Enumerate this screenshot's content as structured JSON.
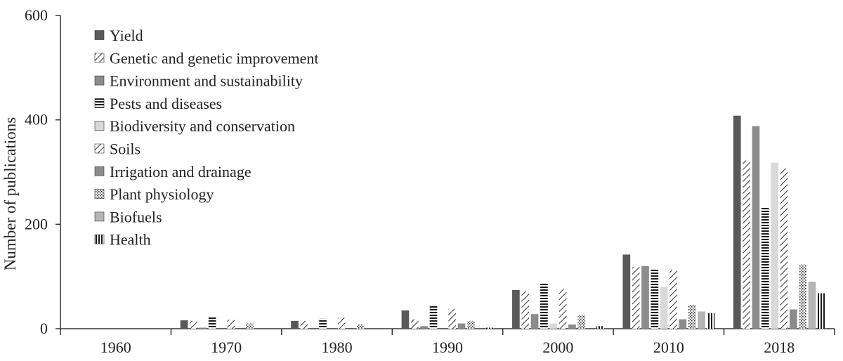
{
  "chart_data": {
    "type": "bar",
    "title": "",
    "xlabel": "",
    "ylabel": "Number of publications",
    "ylim": [
      0,
      600
    ],
    "yticks": [
      "0",
      "200",
      "400",
      "600"
    ],
    "grid": false,
    "legend_position": "top-left",
    "categories": [
      "1960",
      "1970",
      "1980",
      "1990",
      "2000",
      "2010",
      "2018"
    ],
    "series": [
      {
        "name": "Yield",
        "pattern": "solid-dark",
        "values": [
          0,
          16,
          15,
          35,
          74,
          142,
          408
        ]
      },
      {
        "name": "Genetic and genetic improvement",
        "pattern": "diagonal-hatch",
        "values": [
          0,
          15,
          15,
          18,
          72,
          118,
          322
        ]
      },
      {
        "name": "Environment and sustainability",
        "pattern": "solid-gray",
        "values": [
          0,
          2,
          0,
          5,
          28,
          120,
          388
        ]
      },
      {
        "name": "Pests and diseases",
        "pattern": "horizontal-lines",
        "values": [
          0,
          23,
          19,
          44,
          87,
          113,
          232
        ]
      },
      {
        "name": "Biodiversity and conservation",
        "pattern": "solid-light",
        "values": [
          0,
          0,
          0,
          0,
          10,
          80,
          318
        ]
      },
      {
        "name": "Soils",
        "pattern": "diagonal-hatch",
        "values": [
          0,
          17,
          21,
          38,
          76,
          112,
          307
        ]
      },
      {
        "name": "Irrigation and drainage",
        "pattern": "solid-gray",
        "values": [
          0,
          0,
          0,
          10,
          8,
          18,
          37
        ]
      },
      {
        "name": "Plant physiology",
        "pattern": "dots",
        "values": [
          0,
          10,
          8,
          15,
          26,
          46,
          123
        ]
      },
      {
        "name": "Biofuels",
        "pattern": "solid-lightgray",
        "values": [
          0,
          0,
          0,
          0,
          0,
          33,
          90
        ]
      },
      {
        "name": "Health",
        "pattern": "vertical-lines",
        "values": [
          0,
          0,
          0,
          2,
          5,
          30,
          68
        ]
      }
    ]
  },
  "colors": {
    "yield": "#595959",
    "environment": "#8c8c8c",
    "biodiversity": "#d9d9d9",
    "irrigation": "#7a7a7a",
    "biofuels": "#b5b5b5",
    "hatch_stroke": "#333333",
    "axis": "#333333"
  }
}
